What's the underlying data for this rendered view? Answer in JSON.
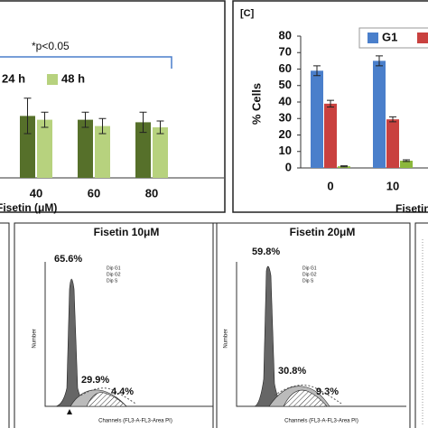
{
  "chart_data": [
    {
      "type": "bar",
      "annotation": "*p<0.05",
      "categories": [
        "40",
        "60",
        "80"
      ],
      "x_label": "Fisetin (μM)",
      "series": [
        {
          "name": "24 h",
          "color": "#56702a",
          "values": [
            49,
            46,
            44
          ],
          "errors": [
            14,
            6,
            8
          ]
        },
        {
          "name": "48 h",
          "color": "#b7d27e",
          "values": [
            46,
            41,
            40
          ],
          "errors": [
            6,
            6,
            5
          ]
        }
      ],
      "ylim": [
        0,
        100
      ]
    },
    {
      "type": "bar",
      "panel_label": "[C]",
      "y_label": "% Cells",
      "x_label": "Fisetin",
      "categories": [
        "0",
        "10"
      ],
      "series": [
        {
          "name": "G1",
          "color": "#4a7fcb",
          "values": [
            59,
            65
          ],
          "errors": [
            3,
            3
          ]
        },
        {
          "color": "#c9413f",
          "values": [
            39,
            29.5
          ],
          "errors": [
            2,
            1.5
          ]
        },
        {
          "color": "#8cb83c",
          "values": [
            1,
            4.4
          ],
          "errors": [
            0.3,
            0.5
          ]
        }
      ],
      "ylim": [
        0,
        80
      ],
      "yticks": [
        0,
        10,
        20,
        30,
        40,
        50,
        60,
        70,
        80
      ]
    }
  ],
  "histograms": [
    {
      "title": "Fisetin 10μM",
      "labels": [
        "65.6%",
        "29.9%",
        "4.4%"
      ],
      "legend": [
        "Dip G1",
        "Dip G2",
        "Dip S"
      ],
      "x_label": "Channels (FL3-A-FL3-Area PI)",
      "y_label": "Number"
    },
    {
      "title": "Fisetin 20μM",
      "labels": [
        "59.8%",
        "30.8%",
        "9.3%"
      ],
      "legend": [
        "Dip G1",
        "Dip G2",
        "Dip S"
      ],
      "x_label": "Channels (FL3-A-FL3-Area PI)",
      "y_label": "Number"
    }
  ]
}
